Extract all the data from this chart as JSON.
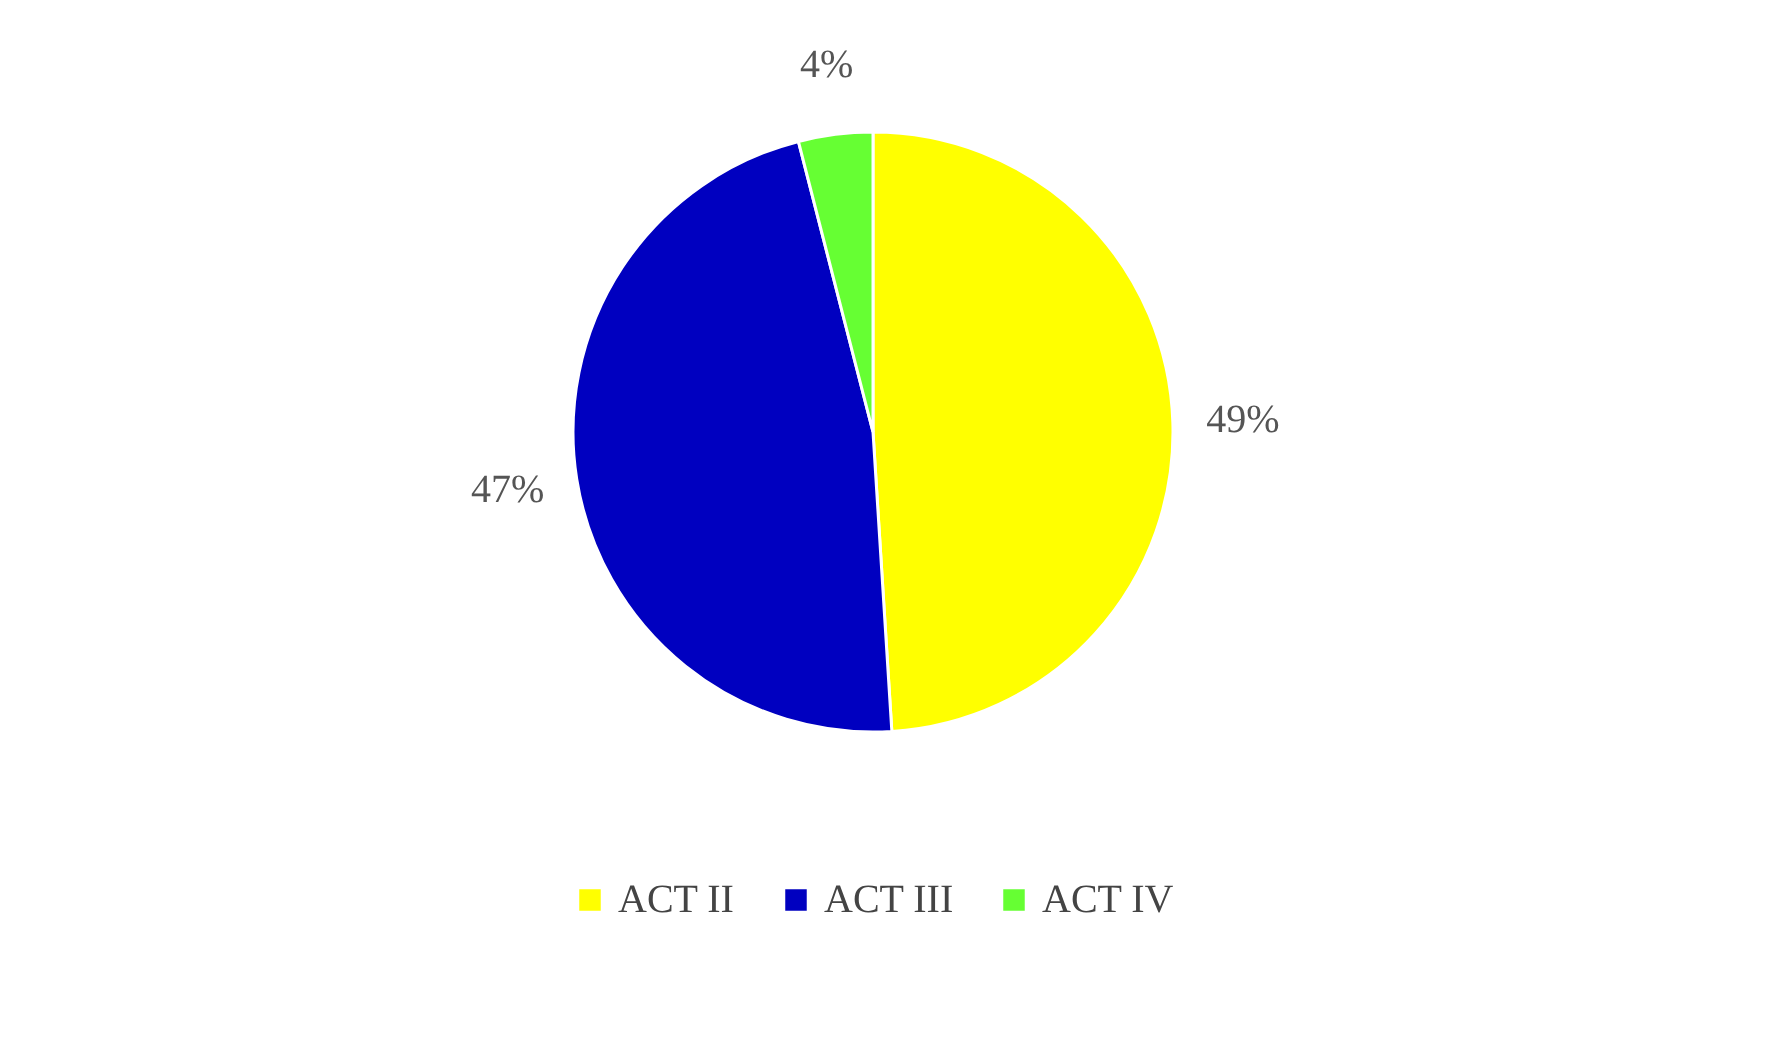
{
  "chart_data": {
    "type": "pie",
    "categories": [
      "ACT II",
      "ACT III",
      "ACT IV"
    ],
    "values": [
      49,
      47,
      4
    ],
    "colors": [
      "#ffff00",
      "#0000c0",
      "#66ff33"
    ],
    "value_labels": [
      "49%",
      "47%",
      "4%"
    ],
    "legend": "bottom"
  }
}
